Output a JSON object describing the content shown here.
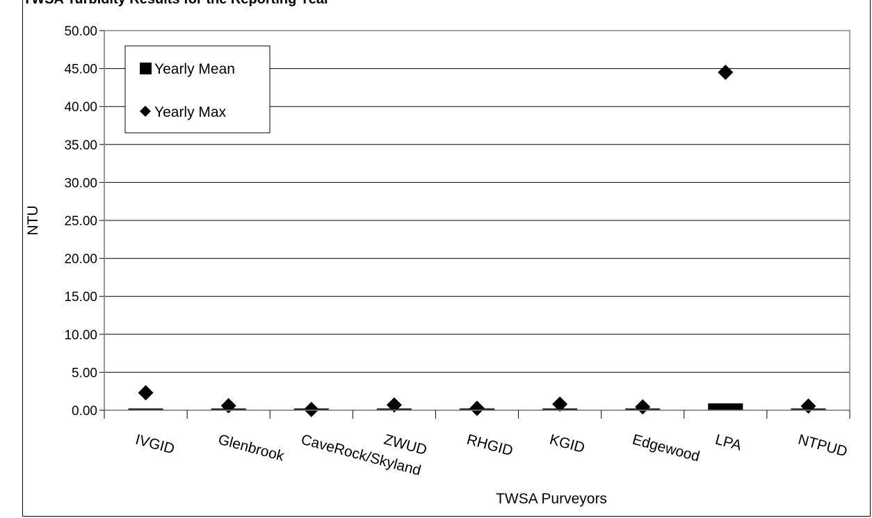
{
  "header_text": "TWSA Turbidity Results for the Reporting Year",
  "chart_data": {
    "type": "bar",
    "title": "",
    "xlabel": "TWSA Purveyors",
    "ylabel": "NTU",
    "ylim": [
      0,
      50
    ],
    "ytick_step": 5,
    "ytick_labels": [
      "0.00",
      "5.00",
      "10.00",
      "15.00",
      "20.00",
      "25.00",
      "30.00",
      "35.00",
      "40.00",
      "45.00",
      "50.00"
    ],
    "grid": true,
    "legend_position": "top-left",
    "categories": [
      "IVGID",
      "Glenbrook",
      "CaveRock/Skyland",
      "ZWUD",
      "RHGID",
      "KGID",
      "Edgewood",
      "LPA",
      "NTPUD"
    ],
    "series": [
      {
        "name": "Yearly Mean",
        "kind": "bar",
        "color": "#000000",
        "values": [
          0.1,
          0.15,
          0.05,
          0.1,
          0.1,
          0.15,
          0.2,
          0.9,
          0.15
        ]
      },
      {
        "name": "Yearly Max",
        "kind": "marker",
        "marker": "diamond",
        "color": "#000000",
        "values": [
          2.3,
          0.6,
          0.1,
          0.7,
          0.25,
          0.8,
          0.45,
          44.5,
          0.55
        ]
      }
    ]
  }
}
